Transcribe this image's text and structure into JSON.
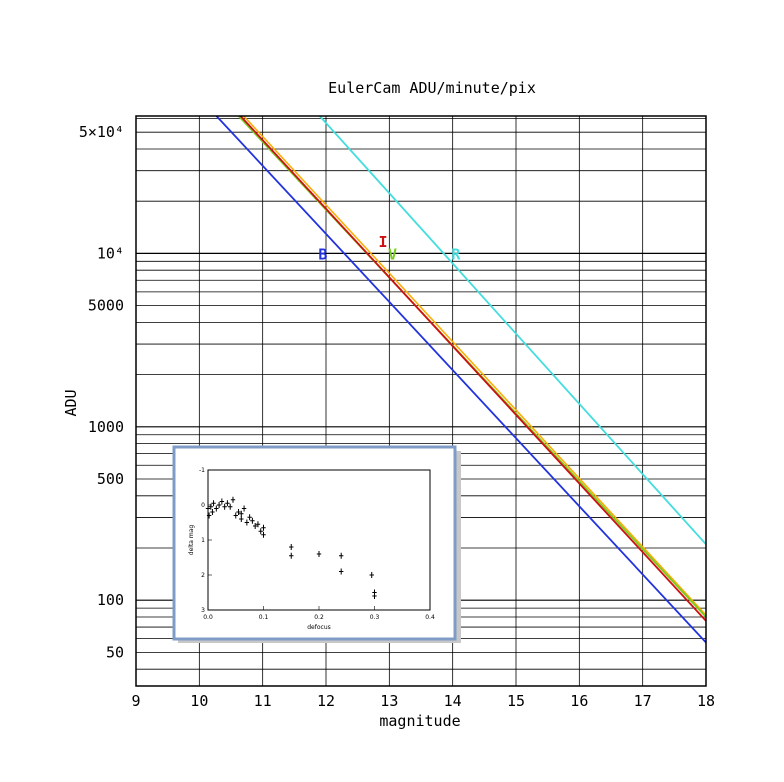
{
  "chart_data": [
    {
      "type": "line",
      "title": "EulerCam ADU/minute/pix",
      "xlabel": "magnitude",
      "ylabel": "ADU",
      "xlim": [
        9,
        18
      ],
      "ylim": [
        32,
        62000
      ],
      "yscale": "log",
      "grid": true,
      "x_ticks": [
        9,
        10,
        11,
        12,
        13,
        14,
        15,
        16,
        17,
        18
      ],
      "y_ticks": [
        {
          "value": 50,
          "label": "50"
        },
        {
          "value": 100,
          "label": "100"
        },
        {
          "value": 500,
          "label": "500"
        },
        {
          "value": 1000,
          "label": "1000"
        },
        {
          "value": 5000,
          "label": "5000"
        },
        {
          "value": 10000,
          "label": "10⁴"
        },
        {
          "value": 50000,
          "label": "5×10⁴"
        }
      ],
      "series": [
        {
          "name": "B",
          "color": "#2233dd",
          "x": [
            10.27,
            18.0
          ],
          "y": [
            62000,
            57
          ],
          "label_at": [
            11.95,
            10000
          ]
        },
        {
          "name": "I",
          "color": "#cc1111",
          "x": [
            10.65,
            18.0
          ],
          "y": [
            62000,
            76
          ],
          "label_at": [
            12.9,
            11800
          ]
        },
        {
          "name": "V",
          "color": "#77cc22",
          "x": [
            10.62,
            18.0
          ],
          "y": [
            62000,
            80
          ],
          "label_at": [
            13.05,
            10000
          ]
        },
        {
          "name": "R",
          "color": "#44dddd",
          "x": [
            11.9,
            18.0
          ],
          "y": [
            62000,
            210
          ],
          "label_at": [
            14.05,
            10000
          ]
        }
      ],
      "extra_curve": {
        "color": "#ffaa00",
        "x": [
          10.7,
          18.0
        ],
        "y": [
          62000,
          82
        ]
      }
    },
    {
      "type": "scatter",
      "title": "",
      "xlabel": "defocus",
      "ylabel": "delta mag",
      "xlim": [
        0.0,
        0.4
      ],
      "ylim": [
        -1,
        3
      ],
      "y_inverted": true,
      "x_tick_labels": [
        "0.0",
        "0.1",
        "0.2",
        "0.3",
        "0.4"
      ],
      "y_tick_labels": [
        "-1",
        "0",
        "1",
        "2",
        "3"
      ],
      "points": [
        [
          0.0,
          0.1
        ],
        [
          0.002,
          0.3
        ],
        [
          0.005,
          0.05
        ],
        [
          0.008,
          0.2
        ],
        [
          0.01,
          -0.05
        ],
        [
          0.015,
          0.1
        ],
        [
          0.02,
          0.0
        ],
        [
          0.025,
          -0.1
        ],
        [
          0.03,
          0.05
        ],
        [
          0.035,
          -0.05
        ],
        [
          0.04,
          0.05
        ],
        [
          0.045,
          -0.15
        ],
        [
          0.05,
          0.3
        ],
        [
          0.055,
          0.2
        ],
        [
          0.06,
          0.4
        ],
        [
          0.06,
          0.25
        ],
        [
          0.065,
          0.1
        ],
        [
          0.07,
          0.5
        ],
        [
          0.075,
          0.35
        ],
        [
          0.08,
          0.45
        ],
        [
          0.085,
          0.6
        ],
        [
          0.09,
          0.55
        ],
        [
          0.095,
          0.75
        ],
        [
          0.1,
          0.65
        ],
        [
          0.1,
          0.85
        ],
        [
          0.15,
          1.45
        ],
        [
          0.15,
          1.2
        ],
        [
          0.2,
          1.4
        ],
        [
          0.24,
          1.45
        ],
        [
          0.24,
          1.9
        ],
        [
          0.295,
          2.0
        ],
        [
          0.3,
          2.6
        ],
        [
          0.3,
          2.5
        ]
      ]
    }
  ]
}
